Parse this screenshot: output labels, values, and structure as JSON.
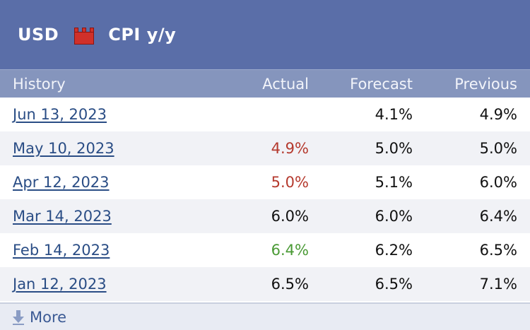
{
  "header": {
    "currency": "USD",
    "impact_icon": "high-impact-icon",
    "event": "CPI y/y"
  },
  "table": {
    "columns": {
      "history": "History",
      "actual": "Actual",
      "forecast": "Forecast",
      "previous": "Previous"
    },
    "rows": [
      {
        "date": "Jun 13, 2023",
        "actual": "",
        "forecast": "4.1%",
        "previous": "4.9%"
      },
      {
        "date": "May 10, 2023",
        "actual": "4.9%",
        "forecast": "5.0%",
        "previous": "5.0%"
      },
      {
        "date": "Apr 12, 2023",
        "actual": "5.0%",
        "forecast": "5.1%",
        "previous": "6.0%"
      },
      {
        "date": "Mar 14, 2023",
        "actual": "6.0%",
        "forecast": "6.0%",
        "previous": "6.4%"
      },
      {
        "date": "Feb 14, 2023",
        "actual": "6.4%",
        "forecast": "6.2%",
        "previous": "6.5%"
      },
      {
        "date": "Jan 12, 2023",
        "actual": "6.5%",
        "forecast": "6.5%",
        "previous": "7.1%"
      }
    ]
  },
  "footer": {
    "more_label": "More",
    "more_icon": "download-arrow-icon"
  },
  "colors": {
    "header_bg": "#5a6ea8",
    "table_header_bg": "#8595bd",
    "link": "#2a4d85",
    "worse": "#b53a2e",
    "better": "#4a9a35",
    "neutral": "#111111"
  }
}
